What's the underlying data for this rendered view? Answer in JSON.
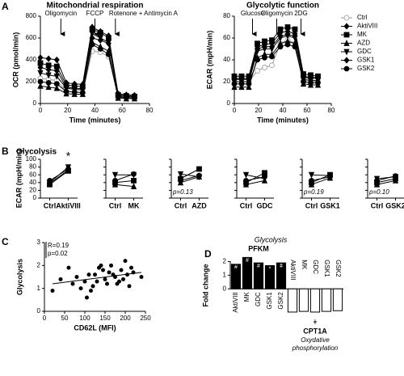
{
  "panel_letters": [
    "A",
    "B",
    "C",
    "D"
  ],
  "panel_b_title": "Glycolysis",
  "chart_data": [
    {
      "type": "line",
      "title": "Mitochondrial respiration",
      "xlabel": "Time (minutes)",
      "ylabel": "OCR (pmol/min)",
      "x": [
        0,
        6,
        12,
        19,
        25,
        31,
        38,
        44,
        50,
        57,
        63,
        69
      ],
      "xlim": [
        0,
        80
      ],
      "xticks": [
        0,
        20,
        40,
        60,
        80
      ],
      "ylim": [
        0,
        800
      ],
      "yticks": [
        0,
        200,
        400,
        600,
        800
      ],
      "annotations": [
        {
          "text": "Oligomycin",
          "x": 15
        },
        {
          "text": "FCCP",
          "x": 40
        },
        {
          "text": "Rotenone + Antimycin A",
          "x": 55
        }
      ],
      "series": [
        {
          "name": "Ctrl",
          "color": "#999999",
          "marker": "circle-open",
          "values": [
            230,
            220,
            210,
            110,
            105,
            100,
            480,
            470,
            430,
            60,
            55,
            50
          ]
        },
        {
          "name": "AktiVIII",
          "color": "#000000",
          "marker": "diamond",
          "values": [
            330,
            310,
            300,
            150,
            140,
            135,
            600,
            580,
            550,
            70,
            65,
            60
          ]
        },
        {
          "name": "MK",
          "color": "#000000",
          "marker": "square",
          "values": [
            370,
            350,
            340,
            170,
            160,
            155,
            680,
            650,
            600,
            80,
            70,
            65
          ]
        },
        {
          "name": "AZD",
          "color": "#000000",
          "marker": "triangle",
          "values": [
            160,
            150,
            140,
            90,
            85,
            85,
            560,
            520,
            480,
            50,
            45,
            45
          ]
        },
        {
          "name": "GDC",
          "color": "#000000",
          "marker": "triangle-down",
          "values": [
            280,
            260,
            250,
            140,
            130,
            125,
            640,
            600,
            560,
            70,
            65,
            60
          ]
        },
        {
          "name": "GSK1",
          "color": "#000000",
          "marker": "diamond",
          "values": [
            420,
            410,
            400,
            190,
            180,
            175,
            700,
            660,
            620,
            90,
            80,
            75
          ]
        },
        {
          "name": "GSK2",
          "color": "#000000",
          "marker": "circle",
          "values": [
            200,
            190,
            180,
            110,
            105,
            100,
            540,
            500,
            450,
            60,
            55,
            50
          ]
        }
      ]
    },
    {
      "type": "line",
      "title": "Glycolytic function",
      "xlabel": "Time (minutes)",
      "ylabel": "ECAR (mpH/min)",
      "legend": "right",
      "x": [
        0,
        6,
        12,
        19,
        25,
        31,
        38,
        44,
        50,
        57,
        63,
        69
      ],
      "xlim": [
        0,
        80
      ],
      "xticks": [
        0,
        20,
        40,
        60,
        80
      ],
      "ylim": [
        0,
        80
      ],
      "yticks": [
        0,
        20,
        40,
        60,
        80
      ],
      "annotations": [
        {
          "text": "Glucose",
          "x": 15
        },
        {
          "text": "Oligomycin",
          "x": 35
        },
        {
          "text": "2DG",
          "x": 55
        }
      ],
      "series": [
        {
          "name": "Ctrl",
          "color": "#999999",
          "marker": "circle-open",
          "values": [
            20,
            20,
            20,
            30,
            33,
            35,
            55,
            58,
            55,
            22,
            21,
            20
          ]
        },
        {
          "name": "AktiVIII",
          "color": "#000000",
          "marker": "diamond",
          "values": [
            22,
            22,
            22,
            50,
            52,
            52,
            62,
            63,
            62,
            25,
            24,
            24
          ]
        },
        {
          "name": "MK",
          "color": "#000000",
          "marker": "square",
          "values": [
            25,
            25,
            25,
            55,
            57,
            58,
            68,
            70,
            68,
            27,
            26,
            25
          ]
        },
        {
          "name": "AZD",
          "color": "#000000",
          "marker": "triangle",
          "values": [
            15,
            15,
            15,
            42,
            45,
            45,
            55,
            57,
            55,
            18,
            17,
            17
          ]
        },
        {
          "name": "GDC",
          "color": "#000000",
          "marker": "triangle-down",
          "values": [
            20,
            20,
            20,
            48,
            50,
            50,
            60,
            62,
            60,
            22,
            21,
            21
          ]
        },
        {
          "name": "GSK1",
          "color": "#000000",
          "marker": "diamond",
          "values": [
            23,
            23,
            23,
            52,
            54,
            55,
            65,
            66,
            64,
            24,
            23,
            23
          ]
        },
        {
          "name": "GSK2",
          "color": "#000000",
          "marker": "circle",
          "values": [
            18,
            18,
            18,
            40,
            42,
            43,
            52,
            54,
            52,
            20,
            19,
            19
          ]
        }
      ]
    },
    {
      "type": "line",
      "ylabel": "ECAR (mpH/min)",
      "categories": [
        "Ctrl",
        "AktiVIII"
      ],
      "ylim": [
        0,
        100
      ],
      "yticks": [
        0,
        20,
        40,
        60,
        80,
        100
      ],
      "color": "#000000",
      "annotation": "*",
      "series": [
        {
          "marker": "triangle-down",
          "values": [
            40,
            80
          ]
        },
        {
          "marker": "circle",
          "values": [
            45,
            75
          ]
        },
        {
          "marker": "square",
          "values": [
            35,
            70
          ]
        },
        {
          "marker": "triangle",
          "values": [
            38,
            72
          ]
        }
      ]
    },
    {
      "type": "line",
      "categories": [
        "Ctrl",
        "MK"
      ],
      "ylim": [
        0,
        100
      ],
      "yticks": [
        0,
        20,
        40,
        60,
        80,
        100
      ],
      "color": "#000000",
      "series": [
        {
          "marker": "triangle-down",
          "values": [
            60,
            60
          ]
        },
        {
          "marker": "circle",
          "values": [
            45,
            62
          ]
        },
        {
          "marker": "square",
          "values": [
            40,
            45
          ]
        },
        {
          "marker": "triangle",
          "values": [
            35,
            30
          ]
        }
      ]
    },
    {
      "type": "line",
      "categories": [
        "Ctrl",
        "AZD"
      ],
      "ylim": [
        0,
        100
      ],
      "yticks": [
        0,
        20,
        40,
        60,
        80,
        100
      ],
      "color": "#000000",
      "annotation": "p=0.13",
      "series": [
        {
          "marker": "triangle-down",
          "values": [
            62,
            55
          ]
        },
        {
          "marker": "circle",
          "values": [
            45,
            58
          ]
        },
        {
          "marker": "square",
          "values": [
            50,
            75
          ]
        },
        {
          "marker": "triangle",
          "values": [
            40,
            55
          ]
        }
      ]
    },
    {
      "type": "line",
      "categories": [
        "Ctrl",
        "GDC"
      ],
      "ylim": [
        0,
        100
      ],
      "yticks": [
        0,
        20,
        40,
        60,
        80,
        100
      ],
      "color": "#000000",
      "series": [
        {
          "marker": "triangle-down",
          "values": [
            60,
            50
          ]
        },
        {
          "marker": "circle",
          "values": [
            45,
            55
          ]
        },
        {
          "marker": "square",
          "values": [
            40,
            65
          ]
        },
        {
          "marker": "triangle",
          "values": [
            35,
            45
          ]
        }
      ]
    },
    {
      "type": "line",
      "categories": [
        "Ctrl",
        "GSK1"
      ],
      "ylim": [
        0,
        100
      ],
      "yticks": [
        0,
        20,
        40,
        60,
        80,
        100
      ],
      "color": "#000000",
      "annotation": "p=0.19",
      "series": [
        {
          "marker": "triangle-down",
          "values": [
            60,
            58
          ]
        },
        {
          "marker": "circle",
          "values": [
            45,
            55
          ]
        },
        {
          "marker": "square",
          "values": [
            40,
            60
          ]
        },
        {
          "marker": "triangle",
          "values": [
            35,
            52
          ]
        }
      ]
    },
    {
      "type": "line",
      "categories": [
        "Ctrl",
        "GSK2"
      ],
      "ylim": [
        0,
        100
      ],
      "yticks": [
        0,
        20,
        40,
        60,
        80,
        100
      ],
      "color": "#000000",
      "annotation": "p=0.10",
      "series": [
        {
          "marker": "triangle-down",
          "values": [
            50,
            55
          ]
        },
        {
          "marker": "circle",
          "values": [
            45,
            57
          ]
        },
        {
          "marker": "square",
          "values": [
            40,
            50
          ]
        },
        {
          "marker": "triangle",
          "values": [
            35,
            45
          ]
        }
      ]
    },
    {
      "type": "scatter",
      "xlabel": "CD62L (MFI)",
      "ylabel": "Glycolysis",
      "color": "#000000",
      "annotations": [
        "R=0.19",
        "p=0.02"
      ],
      "x": [
        20,
        40,
        60,
        70,
        80,
        90,
        100,
        105,
        110,
        115,
        120,
        125,
        130,
        135,
        140,
        145,
        150,
        155,
        160,
        165,
        170,
        175,
        180,
        185,
        190,
        195,
        200,
        205,
        210,
        215,
        220,
        240
      ],
      "values": [
        0.9,
        1.4,
        1.9,
        1.2,
        1.5,
        1.0,
        1.3,
        0.6,
        1.6,
        0.9,
        1.1,
        1.6,
        1.3,
        1.9,
        2.0,
        1.8,
        1.4,
        1.2,
        1.7,
        2.0,
        1.6,
        1.5,
        1.2,
        1.3,
        1.8,
        1.4,
        2.2,
        1.6,
        1.1,
        1.9,
        1.7,
        1.5
      ],
      "trend": {
        "x": [
          20,
          240
        ],
        "y": [
          1.2,
          1.7
        ]
      },
      "xlim": [
        0,
        250
      ],
      "xticks": [
        0,
        50,
        100,
        150,
        200,
        250
      ],
      "ylim": [
        0,
        3
      ],
      "yticks": [
        0,
        1,
        2,
        3
      ]
    },
    {
      "type": "bar",
      "title": "Glycolysis",
      "ylabel": "Fold change",
      "color": "#000000",
      "categories": [
        "AktiVIII",
        "MK",
        "GDC",
        "GSK1",
        "GSK2"
      ],
      "ylim": [
        -2,
        2.5
      ],
      "yticks": [
        0,
        1,
        2
      ],
      "series": [
        {
          "name": "PFKM",
          "values": [
            1.8,
            2.3,
            1.9,
            1.7,
            1.9
          ],
          "significance": [
            "#",
            "#",
            "#",
            "*",
            "ǂ"
          ]
        },
        {
          "name": "CPT1A",
          "values": [
            -1.7,
            -1.65,
            -1.7,
            -1.65,
            -1.6
          ],
          "note": "ǂ",
          "subtitle": [
            "Oxydative",
            "phosphorylation"
          ]
        }
      ]
    }
  ]
}
